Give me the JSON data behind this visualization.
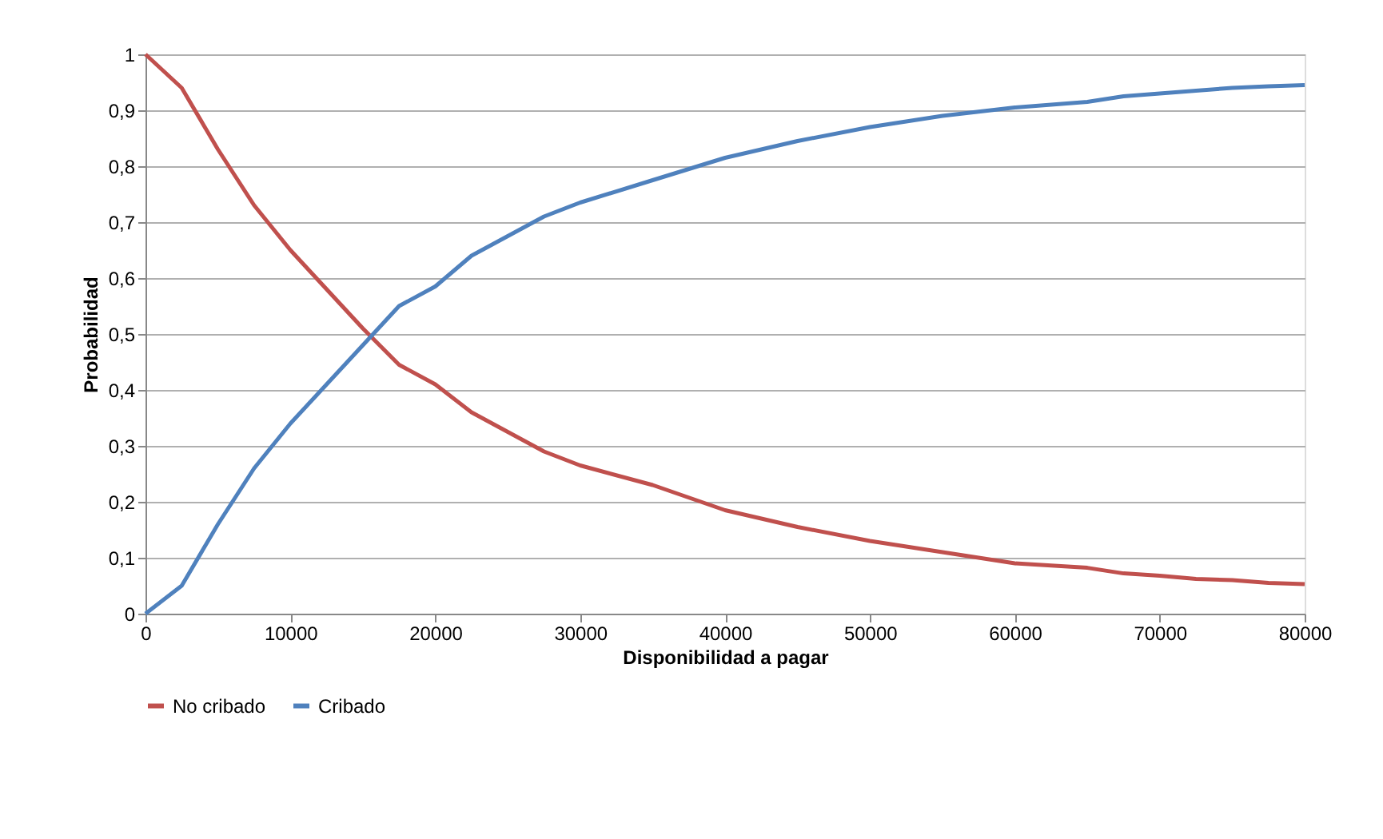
{
  "chart_data": {
    "type": "line",
    "xlabel": "Disponibilidad a pagar",
    "ylabel": "Probabilidad",
    "x": [
      0,
      2500,
      5000,
      7500,
      10000,
      12500,
      15000,
      17500,
      20000,
      22500,
      25000,
      27500,
      30000,
      35000,
      40000,
      45000,
      50000,
      55000,
      60000,
      65000,
      67500,
      70000,
      72500,
      75000,
      77500,
      80000
    ],
    "series": [
      {
        "name": "No cribado",
        "color": "#c0504d",
        "values": [
          1.0,
          0.94,
          0.83,
          0.73,
          0.65,
          0.58,
          0.51,
          0.445,
          0.41,
          0.36,
          0.325,
          0.29,
          0.265,
          0.23,
          0.185,
          0.155,
          0.13,
          0.11,
          0.09,
          0.082,
          0.072,
          0.068,
          0.062,
          0.06,
          0.055,
          0.053
        ]
      },
      {
        "name": "Cribado",
        "color": "#4f81bd",
        "values": [
          0.0,
          0.05,
          0.16,
          0.26,
          0.34,
          0.41,
          0.48,
          0.55,
          0.585,
          0.64,
          0.675,
          0.71,
          0.735,
          0.775,
          0.815,
          0.845,
          0.87,
          0.89,
          0.905,
          0.915,
          0.925,
          0.93,
          0.935,
          0.94,
          0.943,
          0.945
        ]
      }
    ],
    "xlim": [
      0,
      80000
    ],
    "xticks": [
      0,
      10000,
      20000,
      30000,
      40000,
      50000,
      60000,
      70000,
      80000
    ],
    "ylim": [
      0,
      1
    ],
    "yticks": [
      0,
      {
        "value": 0.1,
        "label": "0,1"
      },
      {
        "value": 0.2,
        "label": "0,2"
      },
      {
        "value": 0.3,
        "label": "0,3"
      },
      {
        "value": 0.4,
        "label": "0,4"
      },
      {
        "value": 0.5,
        "label": "0,5"
      },
      {
        "value": 0.6,
        "label": "0,6"
      },
      {
        "value": 0.7,
        "label": "0,7"
      },
      {
        "value": 0.8,
        "label": "0,8"
      },
      {
        "value": 0.9,
        "label": "0,9"
      },
      1
    ],
    "grid": "y",
    "legend": "bottom",
    "marker": "none",
    "line_style": "solid"
  }
}
